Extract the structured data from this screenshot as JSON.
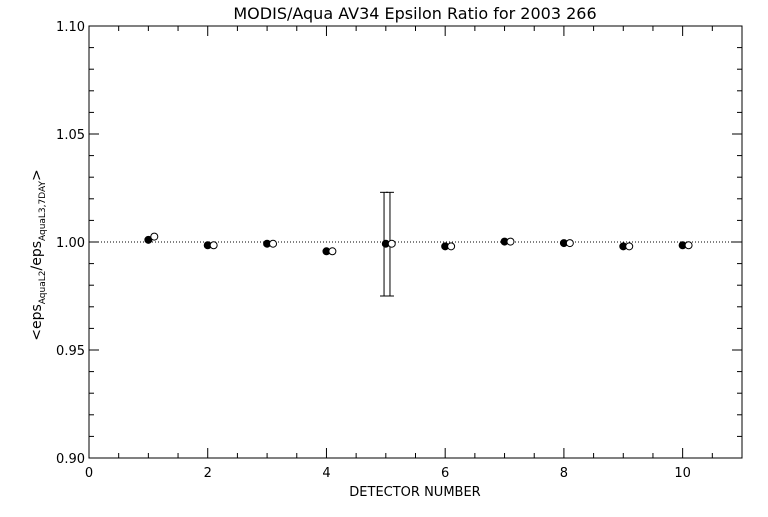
{
  "chart_data": {
    "type": "scatter",
    "title": "MODIS/Aqua AV34 Epsilon Ratio for 2003 266",
    "xlabel": "DETECTOR NUMBER",
    "ylabel": {
      "parts": [
        "<eps",
        "AquaL2",
        "/eps",
        "AquaL3,7DAY",
        ">"
      ]
    },
    "xlim": [
      0,
      11
    ],
    "ylim": [
      0.9,
      1.1
    ],
    "x_ticks": [
      0,
      2,
      4,
      6,
      8,
      10
    ],
    "x_tick_labels": [
      "0",
      "2",
      "4",
      "6",
      "8",
      "10"
    ],
    "y_ticks": [
      0.9,
      0.95,
      1.0,
      1.05,
      1.1
    ],
    "y_tick_labels": [
      "0.90",
      "0.95",
      "1.00",
      "1.05",
      "1.10"
    ],
    "reference_line": {
      "y": 1.0,
      "style": "dotted"
    },
    "grid": false,
    "series": [
      {
        "marker": "filled-circle",
        "x": [
          1,
          2,
          3,
          4,
          5,
          6,
          7,
          8,
          9,
          10
        ],
        "y": [
          1.001,
          0.9985,
          0.9992,
          0.9957,
          0.9992,
          0.998,
          1.0002,
          0.9995,
          0.998,
          0.9985
        ]
      },
      {
        "marker": "open-circle",
        "x": [
          1.1,
          2.1,
          3.1,
          4.1,
          5.1,
          6.1,
          7.1,
          8.1,
          9.1,
          10.1
        ],
        "y": [
          1.0025,
          0.9985,
          0.9992,
          0.9957,
          0.9992,
          0.998,
          1.0002,
          0.9995,
          0.998,
          0.9985
        ]
      }
    ],
    "error_bars": [
      {
        "x": 4.97,
        "low": 0.975,
        "high": 1.023
      },
      {
        "x": 5.07,
        "low": 0.975,
        "high": 1.023
      }
    ]
  }
}
